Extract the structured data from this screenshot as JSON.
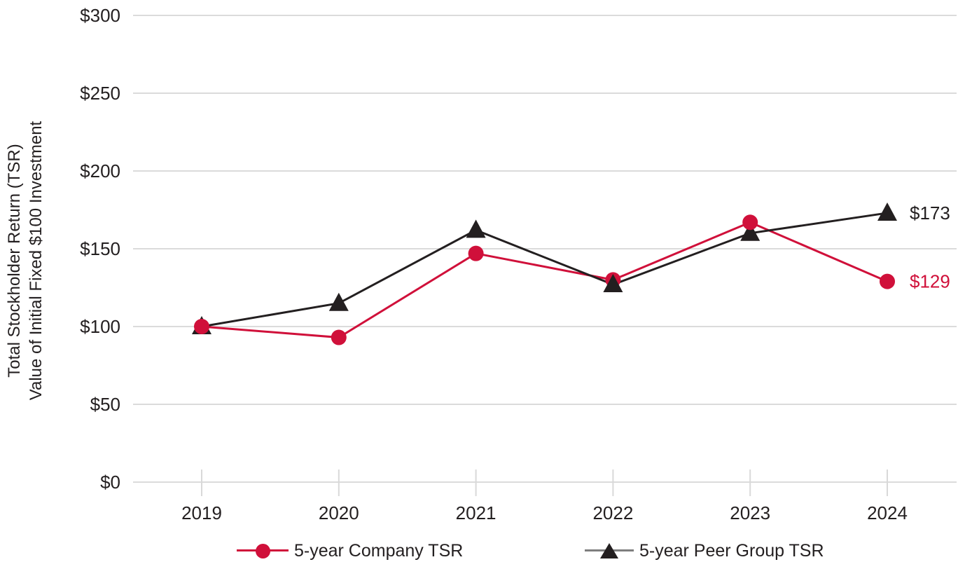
{
  "chart_data": {
    "type": "line",
    "title": "",
    "ylabel_line1": "Total Stockholder Return (TSR)",
    "ylabel_line2": "Value of Initial Fixed $100 Investment",
    "categories": [
      "2019",
      "2020",
      "2021",
      "2022",
      "2023",
      "2024"
    ],
    "yticks": [
      0,
      50,
      100,
      150,
      200,
      250,
      300
    ],
    "ytick_labels": [
      "$0",
      "$50",
      "$100",
      "$150",
      "$200",
      "$250",
      "$300"
    ],
    "ylim": [
      0,
      300
    ],
    "grid": "horizontal",
    "legend_position": "bottom",
    "series": [
      {
        "name": "5-year Company TSR",
        "marker": "circle",
        "color": "#D0103A",
        "values": [
          100,
          93,
          147,
          130,
          167,
          129
        ],
        "end_label": "$129"
      },
      {
        "name": "5-year Peer Group TSR",
        "marker": "triangle",
        "color": "#231F20",
        "legend_line_color": "#7F7F7F",
        "values": [
          100,
          115,
          162,
          127,
          160,
          173
        ],
        "end_label": "$173"
      }
    ]
  },
  "colors": {
    "gridline": "#DBDBDB",
    "tick": "#D9D9D9",
    "axis_text": "#231F20"
  }
}
